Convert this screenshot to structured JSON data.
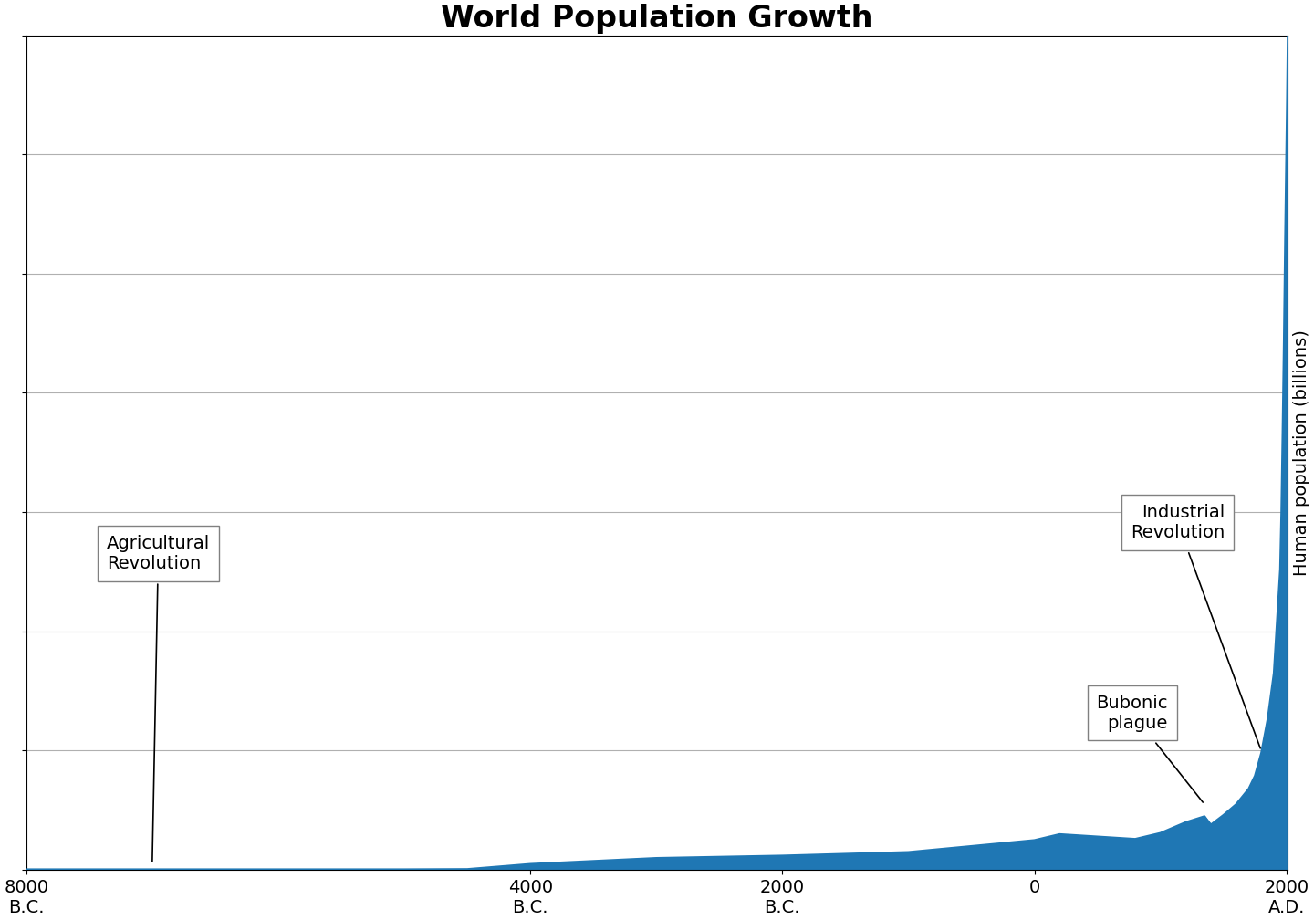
{
  "chart_data": {
    "type": "area",
    "title": "World Population Growth",
    "ylabel": "Human population (billions)",
    "x": [
      -8000,
      -7500,
      -5000,
      -4500,
      -4000,
      -3000,
      -2000,
      -1000,
      0,
      200,
      500,
      800,
      1000,
      1200,
      1350,
      1400,
      1500,
      1600,
      1700,
      1750,
      1800,
      1850,
      1900,
      1950,
      1960,
      1970,
      1980,
      1990,
      2000,
      2005,
      2011
    ],
    "values": [
      0.005,
      0.005,
      0.005,
      0.007,
      0.05,
      0.1,
      0.12,
      0.15,
      0.25,
      0.3,
      0.28,
      0.26,
      0.31,
      0.4,
      0.45,
      0.38,
      0.46,
      0.55,
      0.68,
      0.79,
      0.98,
      1.26,
      1.65,
      2.52,
      3.0,
      3.68,
      4.43,
      5.3,
      6.07,
      6.45,
      7.0
    ],
    "xlim": [
      -8000,
      2011
    ],
    "xticks": [
      {
        "value": -8000,
        "label": "8000\nB.C."
      },
      {
        "value": -4000,
        "label": "4000\nB.C."
      },
      {
        "value": -2000,
        "label": "2000\nB.C."
      },
      0,
      {
        "value": 2000,
        "label": "2000\nA.D."
      }
    ],
    "ylim": [
      0,
      7
    ],
    "yticks": [
      0,
      1,
      2,
      3,
      4,
      5,
      6,
      7
    ],
    "grid": "y",
    "tick_labels": "x",
    "annotations": [
      {
        "text": "Agricultural\nRevolution",
        "x": -7000,
        "y": 0.05
      },
      {
        "text": "Bubonic\nplague",
        "x": 1350,
        "y": 0.55
      },
      {
        "text": "Industrial\nRevolution",
        "x": 1800,
        "y": 1.0
      }
    ]
  }
}
